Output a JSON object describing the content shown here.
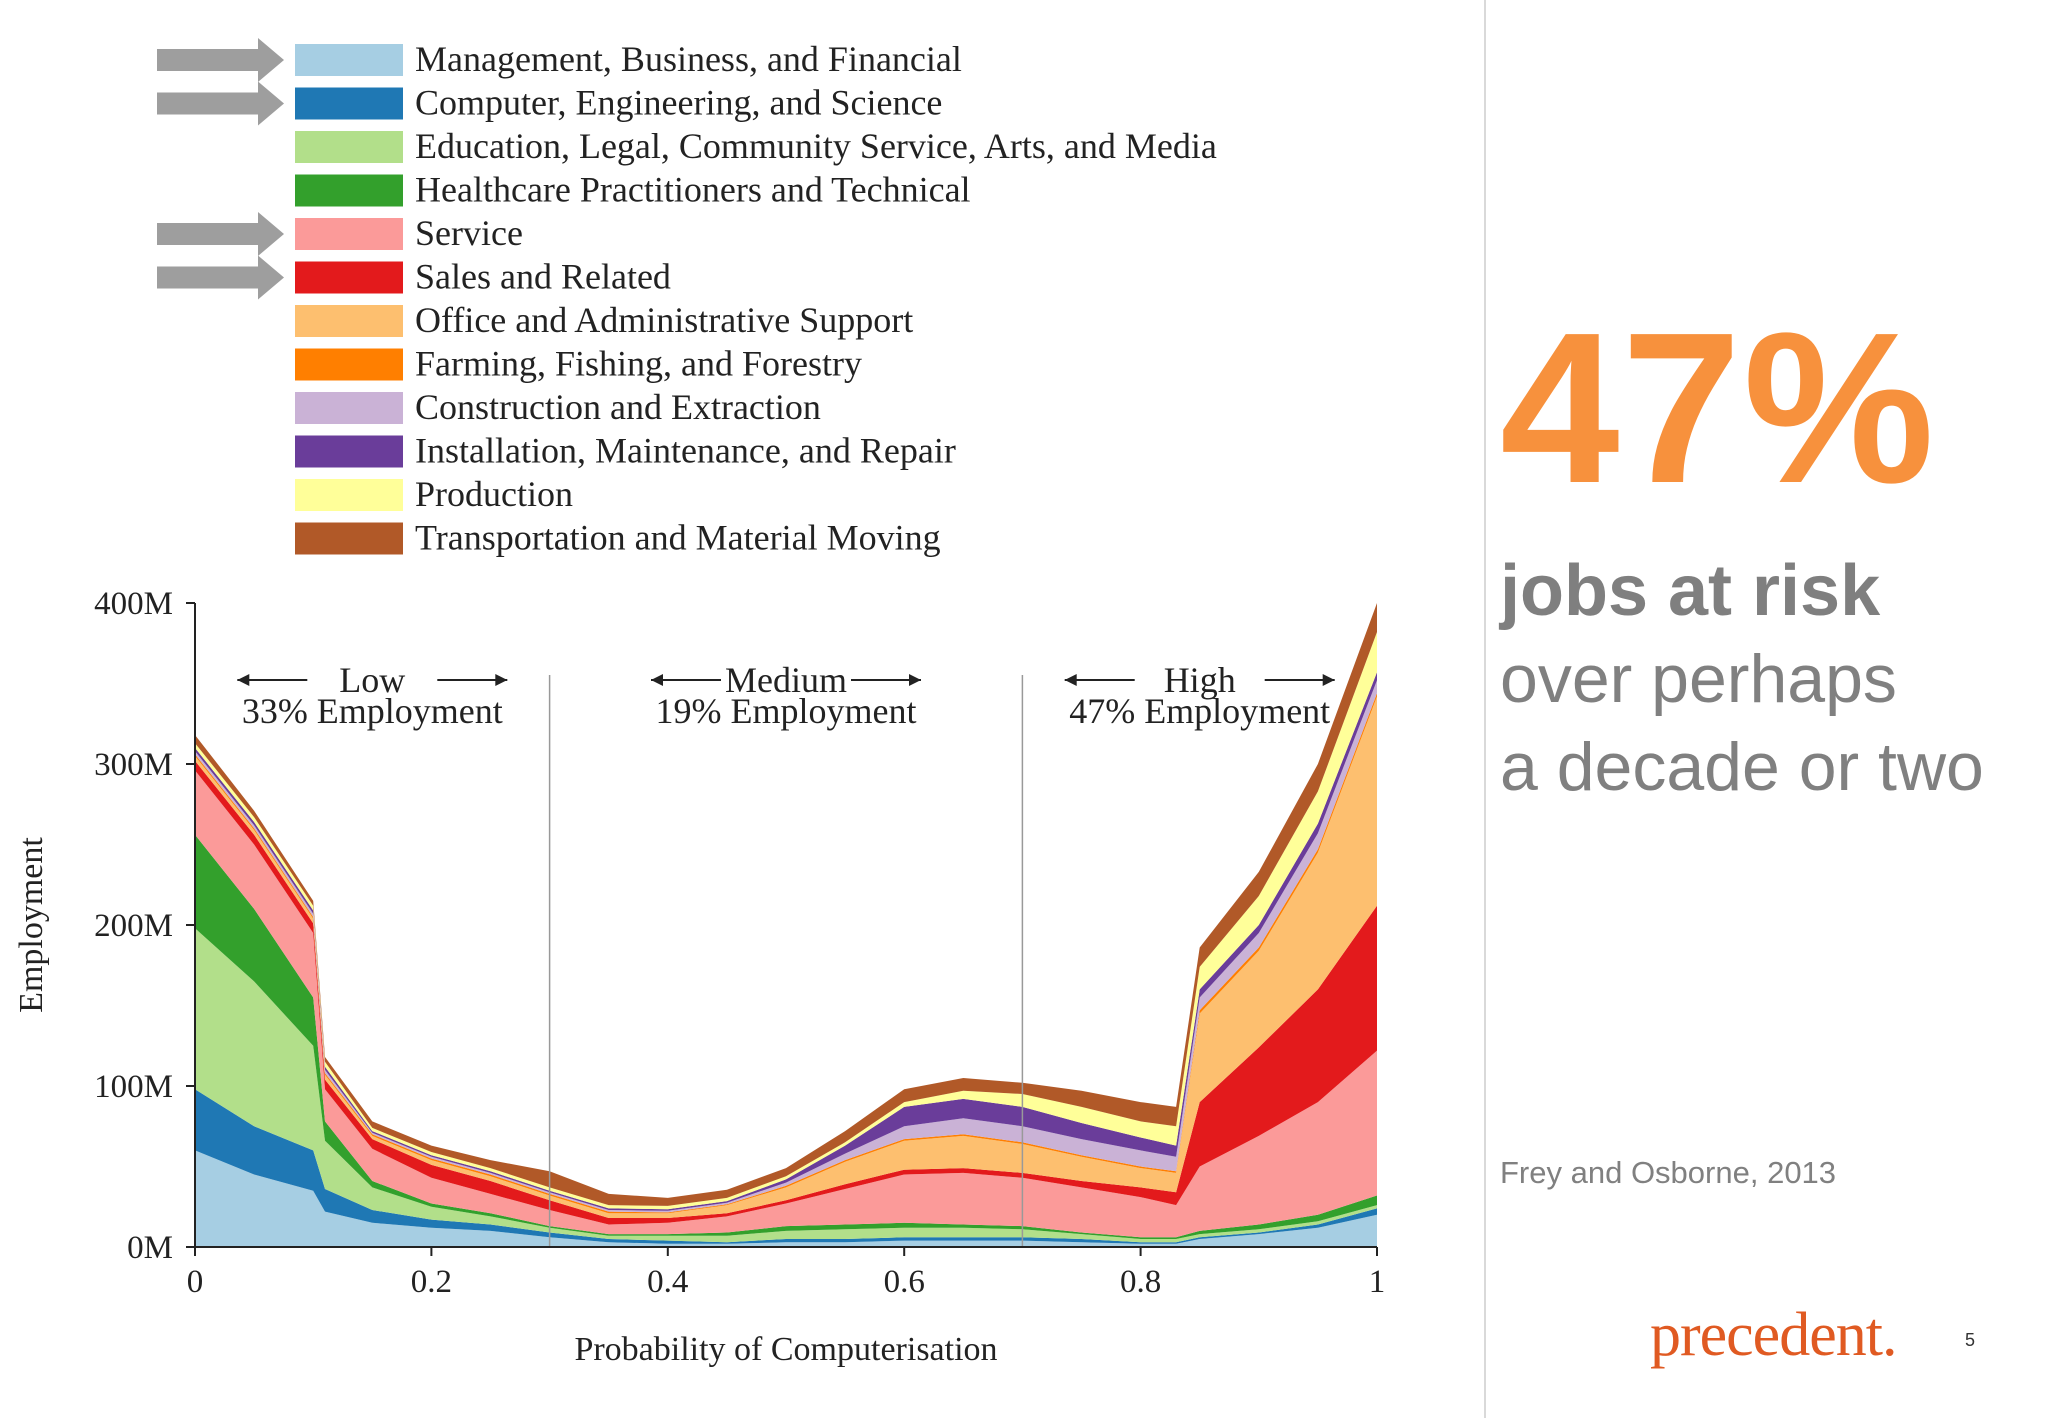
{
  "chart_data": {
    "type": "area",
    "title": "",
    "xlabel": "Probability of Computerisation",
    "ylabel": "Employment",
    "xlim": [
      0,
      1
    ],
    "ylim": [
      0,
      400
    ],
    "x_ticks": [
      "0",
      "0.2",
      "0.4",
      "0.6",
      "0.8",
      "1"
    ],
    "y_ticks": [
      "0M",
      "100M",
      "200M",
      "300M",
      "400M"
    ],
    "legend_position": "top-left",
    "arrow_marked_series": [
      "Management, Business, and Financial",
      "Computer, Engineering, and Science",
      "Service",
      "Sales and Related"
    ],
    "regions": [
      {
        "label": "Low",
        "sublabel": "33% Employment",
        "range": [
          0,
          0.3
        ]
      },
      {
        "label": "Medium",
        "sublabel": "19% Employment",
        "range": [
          0.3,
          0.7
        ]
      },
      {
        "label": "High",
        "sublabel": "47% Employment",
        "range": [
          0.7,
          1
        ]
      }
    ],
    "x": [
      0,
      0.05,
      0.1,
      0.11,
      0.15,
      0.2,
      0.25,
      0.3,
      0.35,
      0.4,
      0.45,
      0.5,
      0.55,
      0.6,
      0.65,
      0.7,
      0.75,
      0.8,
      0.83,
      0.85,
      0.9,
      0.95,
      1
    ],
    "series": [
      {
        "name": "Management, Business, and Financial",
        "color": "#a6cee3",
        "values": [
          60,
          45,
          35,
          22,
          15,
          12,
          10,
          6,
          3,
          2,
          2,
          3,
          3,
          4,
          4,
          4,
          3,
          2,
          2,
          5,
          8,
          12,
          20
        ]
      },
      {
        "name": "Computer, Engineering, and Science",
        "color": "#1f78b4",
        "values": [
          38,
          30,
          25,
          14,
          8,
          5,
          4,
          3,
          2,
          2,
          1,
          2,
          2,
          2,
          2,
          2,
          2,
          1,
          1,
          1,
          1,
          2,
          4
        ]
      },
      {
        "name": "Education, Legal, Community Service, Arts, and Media",
        "color": "#b2df8a",
        "values": [
          100,
          90,
          65,
          30,
          14,
          8,
          5,
          3,
          2,
          3,
          4,
          5,
          6,
          6,
          6,
          5,
          3,
          2,
          2,
          2,
          2,
          2,
          2
        ]
      },
      {
        "name": "Healthcare Practitioners and Technical",
        "color": "#33a02c",
        "values": [
          58,
          45,
          30,
          12,
          4,
          2,
          2,
          1,
          1,
          1,
          2,
          3,
          3,
          3,
          2,
          2,
          1,
          1,
          1,
          2,
          3,
          4,
          6
        ]
      },
      {
        "name": "Service",
        "color": "#fb9a99",
        "values": [
          40,
          40,
          40,
          20,
          20,
          16,
          12,
          10,
          6,
          7,
          10,
          14,
          22,
          30,
          32,
          30,
          28,
          25,
          20,
          40,
          55,
          70,
          90
        ]
      },
      {
        "name": "Sales and Related",
        "color": "#e31a1c",
        "values": [
          6,
          6,
          6,
          6,
          6,
          8,
          8,
          6,
          4,
          3,
          2,
          2,
          3,
          3,
          3,
          3,
          4,
          6,
          8,
          40,
          55,
          70,
          90
        ]
      },
      {
        "name": "Office and Administrative Support",
        "color": "#fdbf6f",
        "values": [
          3,
          3,
          3,
          3,
          2,
          3,
          3,
          3,
          3,
          3,
          5,
          8,
          14,
          18,
          20,
          18,
          15,
          12,
          12,
          55,
          60,
          85,
          130
        ]
      },
      {
        "name": "Farming, Fishing, and Forestry",
        "color": "#ff7f00",
        "values": [
          1,
          1,
          1,
          1,
          1,
          1,
          1,
          1,
          1,
          0.5,
          0.5,
          1,
          1,
          1,
          1,
          1,
          1,
          1,
          1,
          2,
          2,
          2,
          2
        ]
      },
      {
        "name": "Construction and Extraction",
        "color": "#cab2d6",
        "values": [
          2,
          2,
          2,
          2,
          1,
          1,
          1,
          1,
          1,
          1,
          1,
          2,
          4,
          8,
          10,
          10,
          10,
          10,
          9,
          8,
          9,
          10,
          8
        ]
      },
      {
        "name": "Installation, Maintenance, and Repair",
        "color": "#6a3d9a",
        "values": [
          2,
          2,
          2,
          2,
          1,
          1,
          1,
          1,
          1,
          1,
          1,
          2,
          5,
          12,
          12,
          12,
          10,
          8,
          7,
          5,
          5,
          6,
          5
        ]
      },
      {
        "name": "Production",
        "color": "#ffff99",
        "values": [
          3,
          3,
          3,
          3,
          2,
          2,
          2,
          2,
          2,
          2,
          2,
          2,
          2,
          3,
          5,
          8,
          10,
          10,
          12,
          14,
          18,
          20,
          25
        ]
      },
      {
        "name": "Transportation and Material Moving",
        "color": "#b15928",
        "values": [
          5,
          4,
          3,
          3,
          4,
          4,
          5,
          10,
          7,
          5,
          5,
          5,
          7,
          8,
          8,
          7,
          10,
          12,
          12,
          12,
          15,
          17,
          18
        ]
      }
    ]
  },
  "slide": {
    "big_stat": "47%",
    "headline": "jobs at risk",
    "subline1": "over perhaps",
    "subline2": "a decade or two",
    "citation": "Frey and Osborne, 2013",
    "logo": "precedent.",
    "page_number": "5"
  }
}
